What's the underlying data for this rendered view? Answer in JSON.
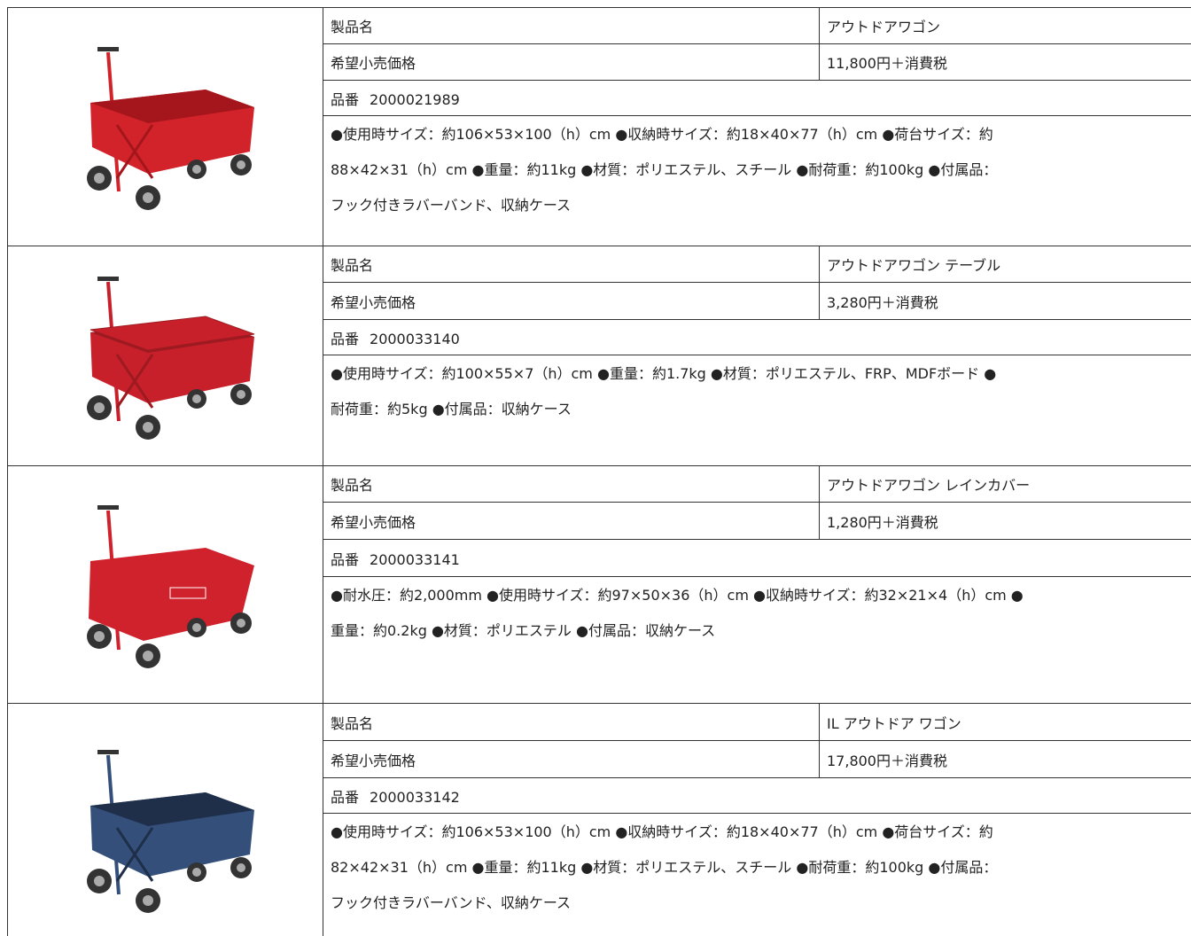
{
  "products": [
    {
      "name_label": "製品名",
      "name": "アウトドアワゴン",
      "price_label": "希望小売価格",
      "price": "11,800円＋消費税",
      "code_label": "品番",
      "code": "2000021989",
      "description": [
        "●使用時サイズ：約106×53×100（h）cm ●収納時サイズ：約18×40×77（h）cm ●荷台サイズ：約",
        "88×42×31（h）cm ●重量：約11kg ●材質：ポリエステル、スチール ●耐荷重：約100kg ●付属品：",
        "フック付きラバーバンド、収納ケース"
      ]
    },
    {
      "name_label": "製品名",
      "name": "アウトドアワゴン テーブル",
      "price_label": "希望小売価格",
      "price": "3,280円＋消費税",
      "code_label": "品番",
      "code": "2000033140",
      "description": [
        "●使用時サイズ：約100×55×7（h）cm ●重量：約1.7kg ●材質：ポリエステル、FRP、MDFボード ●",
        "耐荷重：約5kg ●付属品：収納ケース"
      ]
    },
    {
      "name_label": "製品名",
      "name": "アウトドアワゴン レインカバー",
      "price_label": "希望小売価格",
      "price": "1,280円＋消費税",
      "code_label": "品番",
      "code": "2000033141",
      "description": [
        "●耐水圧：約2,000mm ●使用時サイズ：約97×50×36（h）cm ●収納時サイズ：約32×21×4（h）cm ●",
        "重量：約0.2kg ●材質：ポリエステル ●付属品：収納ケース"
      ]
    },
    {
      "name_label": "製品名",
      "name": "IL アウトドア ワゴン",
      "price_label": "希望小売価格",
      "price": "17,800円＋消費税",
      "code_label": "品番",
      "code": "2000033142",
      "description": [
        "●使用時サイズ：約106×53×100（h）cm ●収納時サイズ：約18×40×77（h）cm ●荷台サイズ：約",
        "82×42×31（h）cm ●重量：約11kg ●材質：ポリエステル、スチール ●耐荷重：約100kg ●付属品：",
        "フック付きラバーバンド、収納ケース"
      ]
    }
  ]
}
